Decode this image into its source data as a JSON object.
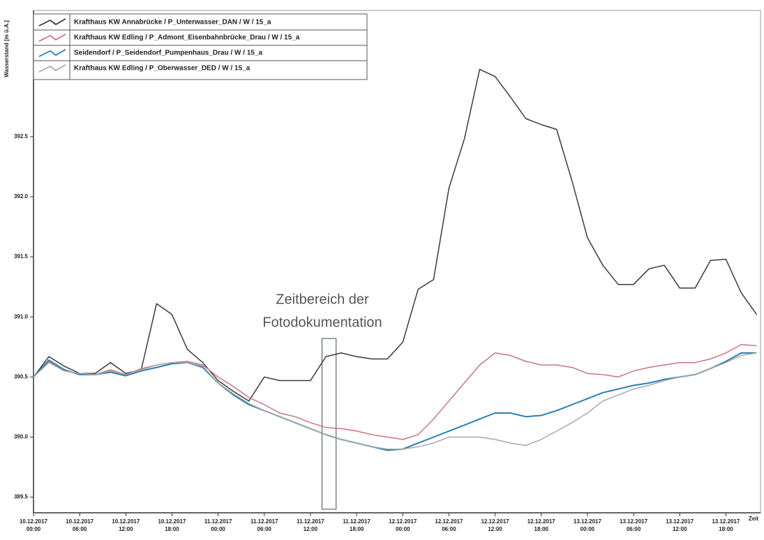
{
  "chart_data": {
    "type": "line",
    "y_label": "Wasserstand [m ü.A.]",
    "x_label": "Zeit",
    "annotation": [
      "Zeitbereich der",
      "Fotodokumentation"
    ],
    "highlight": {
      "x": [
        "11.12.2017 13:30",
        "11.12.2017 15:20"
      ],
      "y": [
        389.4,
        390.82
      ],
      "color": "#5a6a70"
    },
    "xlim": [
      "10.12.2017 00:00",
      "13.12.2017 22:30"
    ],
    "xticks": [
      "10.12.2017 00:00",
      "10.12.2017 06:00",
      "10.12.2017 12:00",
      "10.12.2017 18:00",
      "11.12.2017 00:00",
      "11.12.2017 06:00",
      "11.12.2017 12:00",
      "11.12.2017 18:00",
      "12.12.2017 00:00",
      "12.12.2017 06:00",
      "12.12.2017 12:00",
      "12.12.2017 18:00",
      "13.12.2017 00:00",
      "13.12.2017 06:00",
      "13.12.2017 12:00",
      "13.12.2017 18:00"
    ],
    "ylim": [
      389.37,
      393.55
    ],
    "yticks": [
      389.5,
      {
        "value": 390,
        "label": "390.0"
      },
      390.5,
      {
        "value": 391,
        "label": "391.0"
      },
      391.5,
      {
        "value": 392,
        "label": "392.0"
      },
      392.5
    ],
    "x": [
      "10.12.2017 00:00",
      "10.12.2017 02:00",
      "10.12.2017 04:00",
      "10.12.2017 06:00",
      "10.12.2017 08:00",
      "10.12.2017 10:00",
      "10.12.2017 12:00",
      "10.12.2017 14:00",
      "10.12.2017 16:00",
      "10.12.2017 18:00",
      "10.12.2017 20:00",
      "10.12.2017 22:00",
      "11.12.2017 00:00",
      "11.12.2017 02:00",
      "11.12.2017 04:00",
      "11.12.2017 06:00",
      "11.12.2017 08:00",
      "11.12.2017 10:00",
      "11.12.2017 12:00",
      "11.12.2017 14:00",
      "11.12.2017 16:00",
      "11.12.2017 18:00",
      "11.12.2017 20:00",
      "11.12.2017 22:00",
      "12.12.2017 00:00",
      "12.12.2017 02:00",
      "12.12.2017 04:00",
      "12.12.2017 06:00",
      "12.12.2017 08:00",
      "12.12.2017 10:00",
      "12.12.2017 12:00",
      "12.12.2017 14:00",
      "12.12.2017 16:00",
      "12.12.2017 18:00",
      "12.12.2017 20:00",
      "12.12.2017 22:00",
      "13.12.2017 00:00",
      "13.12.2017 02:00",
      "13.12.2017 04:00",
      "13.12.2017 06:00",
      "13.12.2017 08:00",
      "13.12.2017 10:00",
      "13.12.2017 12:00",
      "13.12.2017 14:00",
      "13.12.2017 16:00",
      "13.12.2017 18:00",
      "13.12.2017 20:00",
      "13.12.2017 22:00"
    ],
    "series": [
      {
        "name": "Krafthaus KW Annabrücke / P_Unterwasser_DAN / W / 15_a",
        "color": "#3a3a3a",
        "values": [
          390.5,
          390.67,
          390.59,
          390.53,
          390.53,
          390.62,
          390.53,
          390.56,
          391.11,
          391.02,
          390.73,
          390.62,
          390.47,
          390.38,
          390.3,
          390.5,
          390.47,
          390.47,
          390.47,
          390.67,
          390.7,
          390.67,
          390.65,
          390.65,
          390.79,
          391.23,
          391.31,
          392.07,
          392.48,
          393.06,
          393.0,
          392.83,
          392.65,
          392.6,
          392.56,
          392.13,
          391.66,
          391.43,
          391.27,
          391.27,
          391.4,
          391.43,
          391.24,
          391.24,
          391.47,
          391.48,
          391.2,
          391.02
        ]
      },
      {
        "name": "Krafthaus KW Edling / P_Admont_Eisenbahnbrücke_Drau / W / 15_a",
        "color": "#c97482",
        "values": [
          390.5,
          390.63,
          390.55,
          390.53,
          390.52,
          390.56,
          390.52,
          390.57,
          390.6,
          390.62,
          390.63,
          390.6,
          390.5,
          390.42,
          390.33,
          390.27,
          390.2,
          390.17,
          390.12,
          390.08,
          390.07,
          390.05,
          390.02,
          390.0,
          389.98,
          390.02,
          390.15,
          390.3,
          390.45,
          390.6,
          390.7,
          390.68,
          390.63,
          390.6,
          390.6,
          390.58,
          390.53,
          390.52,
          390.5,
          390.55,
          390.58,
          390.6,
          390.62,
          390.62,
          390.65,
          390.7,
          390.77,
          390.76
        ]
      },
      {
        "name": "Seidendorf / P_Seidendorf_Pumpenhaus_Drau / W / 15_a",
        "color": "#2b7db0",
        "values": [
          390.5,
          390.64,
          390.56,
          390.52,
          390.52,
          390.54,
          390.51,
          390.55,
          390.58,
          390.61,
          390.62,
          390.58,
          390.45,
          390.35,
          390.27,
          390.22,
          390.17,
          390.12,
          390.07,
          390.02,
          389.98,
          389.95,
          389.92,
          389.89,
          389.9,
          389.95,
          390.0,
          390.05,
          390.1,
          390.15,
          390.2,
          390.2,
          390.17,
          390.18,
          390.22,
          390.27,
          390.32,
          390.37,
          390.4,
          390.43,
          390.45,
          390.48,
          390.5,
          390.52,
          390.57,
          390.63,
          390.7,
          390.7
        ]
      },
      {
        "name": "Krafthaus KW Edling / P_Oberwasser_DED / W / 15_a",
        "color": "#a8a8a8",
        "values": [
          390.5,
          390.62,
          390.55,
          390.53,
          390.52,
          390.55,
          390.52,
          390.56,
          390.6,
          390.62,
          390.62,
          390.59,
          390.45,
          390.36,
          390.28,
          390.22,
          390.17,
          390.12,
          390.07,
          390.02,
          389.98,
          389.95,
          389.92,
          389.9,
          389.9,
          389.92,
          389.95,
          390.0,
          390.0,
          390.0,
          389.98,
          389.95,
          389.93,
          389.98,
          390.05,
          390.12,
          390.2,
          390.3,
          390.35,
          390.4,
          390.43,
          390.47,
          390.5,
          390.52,
          390.57,
          390.62,
          390.68,
          390.7
        ]
      }
    ]
  }
}
